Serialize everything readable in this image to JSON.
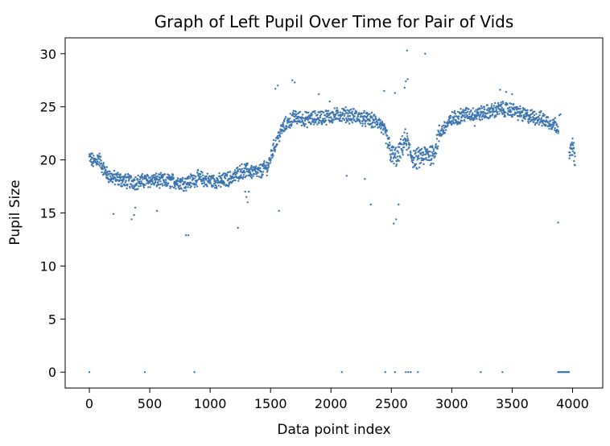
{
  "chart_data": {
    "type": "scatter",
    "title": "Graph of Left Pupil Over Time for Pair of Vids",
    "xlabel": "Data point index",
    "ylabel": "Pupil Size",
    "xlim": [
      -200,
      4250
    ],
    "ylim": [
      -1.5,
      31.5
    ],
    "xticks": [
      0,
      500,
      1000,
      1500,
      2000,
      2500,
      3000,
      3500,
      4000
    ],
    "yticks": [
      0,
      5,
      10,
      15,
      20,
      25,
      30
    ],
    "xtick_labels": [
      "0",
      "500",
      "1000",
      "1500",
      "2000",
      "2500",
      "3000",
      "3500",
      "4000"
    ],
    "ytick_labels": [
      "0",
      "5",
      "10",
      "15",
      "20",
      "25",
      "30"
    ],
    "grid": false,
    "legend": "none",
    "marker_color": "#3a75b0",
    "series": [
      {
        "trend_x": [
          0,
          40,
          80,
          100,
          150,
          200,
          300,
          400,
          500,
          600,
          700,
          800,
          900,
          1000,
          1100,
          1200,
          1250,
          1300,
          1400,
          1480,
          1520,
          1560,
          1600,
          1650,
          1700,
          1800,
          1900,
          2000,
          2100,
          2200,
          2300,
          2400,
          2450,
          2500,
          2550,
          2580,
          2620,
          2660,
          2700,
          2750,
          2800,
          2850,
          2900,
          3000,
          3100,
          3200,
          3300,
          3400,
          3500,
          3600,
          3700,
          3800,
          3880,
          3970,
          4000,
          4020
        ],
        "trend_y": [
          20.2,
          19.8,
          20.2,
          19.5,
          18.6,
          18.3,
          18.0,
          17.9,
          18.1,
          18.0,
          18.0,
          17.8,
          18.3,
          18.0,
          18.0,
          18.4,
          18.9,
          19.0,
          18.8,
          19.4,
          21.0,
          22.0,
          23.0,
          23.6,
          24.0,
          23.8,
          24.0,
          24.1,
          24.3,
          24.1,
          23.8,
          23.5,
          22.5,
          20.5,
          20.2,
          21.0,
          22.0,
          20.5,
          20.0,
          20.3,
          20.5,
          20.6,
          22.5,
          23.8,
          24.3,
          24.3,
          24.5,
          24.8,
          24.7,
          24.2,
          24.0,
          23.6,
          23.2,
          20.5,
          21.2,
          20.0
        ],
        "points_x": [
          0,
          460,
          870,
          2090,
          2450,
          2530,
          2620,
          2640,
          2660,
          2720,
          3240,
          3420,
          3880,
          3890,
          3900,
          3910,
          3920,
          3930,
          3940,
          3950,
          3960,
          3970,
          1230,
          2130,
          2280,
          2330,
          2520,
          2540,
          2560,
          2630,
          2780,
          3190,
          3270,
          1320,
          1570,
          1680,
          1900,
          1990,
          2440,
          2530,
          2610,
          2620,
          2635,
          3880,
          3890,
          3900,
          4000,
          4010,
          4020,
          350,
          370,
          380,
          800,
          820,
          200,
          560,
          1290,
          1300,
          1310,
          1540,
          1560,
          1700,
          3400,
          3450,
          3500
        ],
        "points_y": [
          0,
          0,
          0,
          0,
          0,
          0,
          0,
          0,
          0,
          0,
          0,
          0,
          0,
          0,
          0,
          0,
          0,
          0,
          0,
          0,
          0,
          0,
          13.6,
          18.5,
          18.2,
          15.8,
          14.0,
          14.4,
          15.8,
          30.3,
          30.0,
          23.2,
          25.0,
          17.0,
          15.2,
          27.5,
          26.2,
          25.5,
          26.5,
          26.3,
          26.8,
          27.4,
          27.6,
          14.1,
          24.2,
          24.3,
          22.0,
          21.6,
          19.5,
          14.4,
          14.8,
          15.5,
          12.9,
          12.9,
          14.9,
          15.2,
          17.0,
          16.5,
          16.0,
          26.7,
          27.0,
          27.3,
          26.6,
          26.4,
          26.2
        ]
      }
    ]
  }
}
